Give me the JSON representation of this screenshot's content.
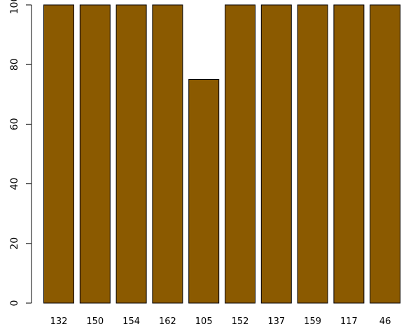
{
  "chart_data": {
    "type": "bar",
    "categories": [
      "132",
      "150",
      "154",
      "162",
      "105",
      "152",
      "137",
      "159",
      "117",
      "46"
    ],
    "values": [
      100,
      100,
      100,
      100,
      75,
      100,
      100,
      100,
      100,
      100
    ],
    "yticks": [
      0,
      20,
      40,
      60,
      80,
      100
    ],
    "ylim": [
      0,
      100
    ],
    "title": "",
    "xlabel": "",
    "ylabel": "",
    "grid": false,
    "bar_color": "#8B5A00",
    "bar_stroke": "#000000"
  }
}
